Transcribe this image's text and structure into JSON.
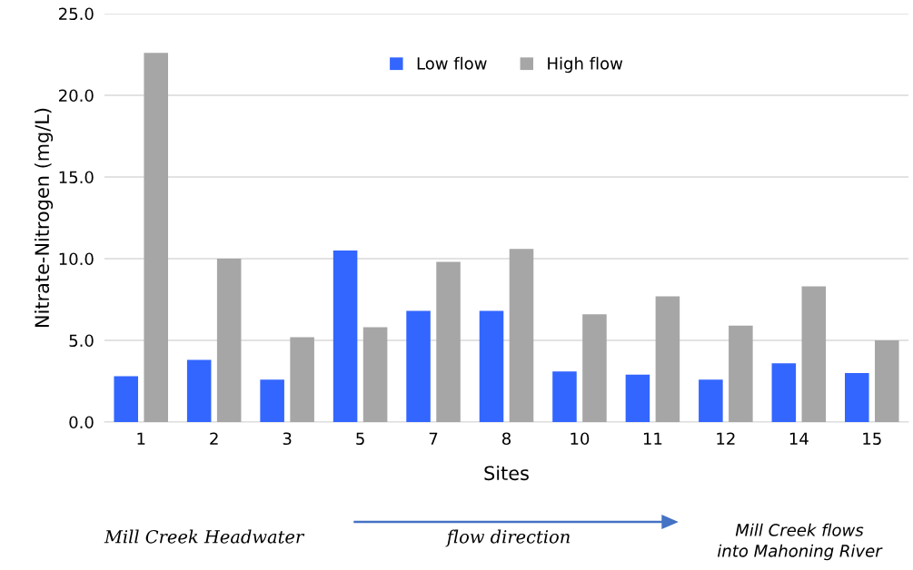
{
  "chart_data": {
    "type": "bar",
    "xlabel": "Sites",
    "ylabel": "Nitrate-Nitrogen (mg/L)",
    "categories": [
      "1",
      "2",
      "3",
      "5",
      "7",
      "8",
      "10",
      "11",
      "12",
      "14",
      "15"
    ],
    "series": [
      {
        "name": "Low flow",
        "color": "#3366ff",
        "values": [
          2.8,
          3.8,
          2.6,
          10.5,
          6.8,
          6.8,
          3.1,
          2.9,
          2.6,
          3.6,
          3.0
        ]
      },
      {
        "name": "High flow",
        "color": "#a6a6a6",
        "values": [
          22.6,
          10.0,
          5.2,
          5.8,
          9.8,
          10.6,
          6.6,
          7.7,
          5.9,
          8.3,
          5.0
        ]
      }
    ],
    "ylim": [
      0,
      25
    ],
    "yticks": [
      {
        "value": 0,
        "label": "0.0"
      },
      {
        "value": 5,
        "label": "5.0"
      },
      {
        "value": 10,
        "label": "10.0"
      },
      {
        "value": 15,
        "label": "15.0"
      },
      {
        "value": 20,
        "label": "20.0"
      },
      {
        "value": 25,
        "label": "25.0"
      }
    ],
    "grid": "y",
    "legend": "top",
    "annotations": [
      "Mill Creek Headwater",
      "flow direction",
      "Mill Creek flows\ninto Mahoning River"
    ]
  }
}
